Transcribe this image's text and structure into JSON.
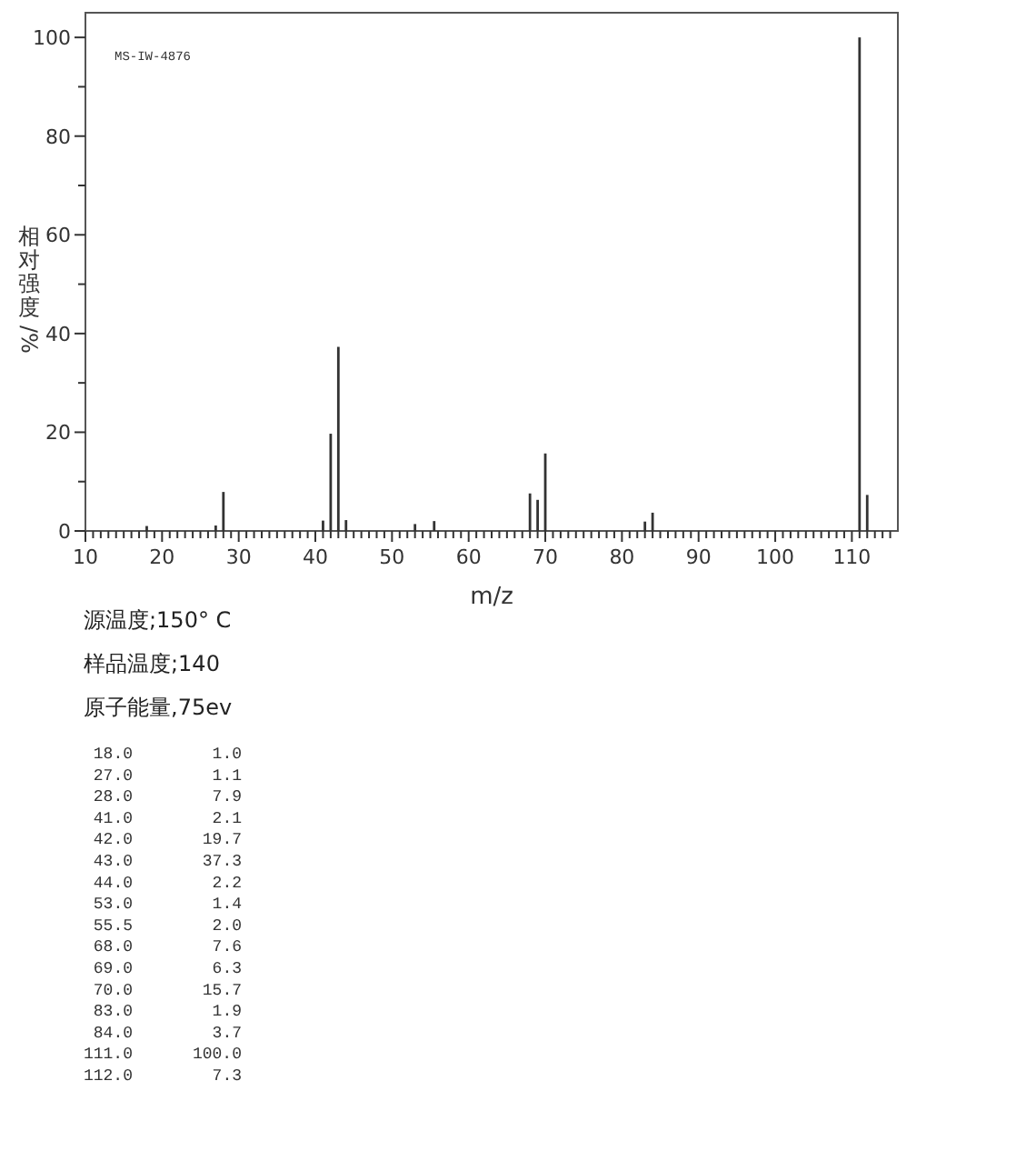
{
  "chart_data": {
    "type": "bar",
    "xlabel": "m/z",
    "ylabel": "相对强度/%",
    "x": [
      18.0,
      27.0,
      28.0,
      41.0,
      42.0,
      43.0,
      44.0,
      53.0,
      55.5,
      68.0,
      69.0,
      70.0,
      83.0,
      84.0,
      111.0,
      112.0
    ],
    "values": [
      1.0,
      1.1,
      7.9,
      2.1,
      19.7,
      37.3,
      2.2,
      1.4,
      2.0,
      7.6,
      6.3,
      15.7,
      1.9,
      3.7,
      100.0,
      7.3
    ],
    "color": "#333333",
    "xlim": [
      10,
      116
    ],
    "xticks": [
      10,
      {
        "value": 11,
        "label": null
      },
      {
        "value": 12,
        "label": null
      },
      {
        "value": 13,
        "label": null
      },
      {
        "value": 14,
        "label": null
      },
      {
        "value": 15,
        "label": null
      },
      {
        "value": 16,
        "label": null
      },
      {
        "value": 17,
        "label": null
      },
      {
        "value": 18,
        "label": null
      },
      {
        "value": 19,
        "label": null
      },
      20,
      {
        "value": 21,
        "label": null
      },
      {
        "value": 22,
        "label": null
      },
      {
        "value": 23,
        "label": null
      },
      {
        "value": 24,
        "label": null
      },
      {
        "value": 25,
        "label": null
      },
      {
        "value": 26,
        "label": null
      },
      {
        "value": 27,
        "label": null
      },
      {
        "value": 28,
        "label": null
      },
      {
        "value": 29,
        "label": null
      },
      30,
      {
        "value": 31,
        "label": null
      },
      {
        "value": 32,
        "label": null
      },
      {
        "value": 33,
        "label": null
      },
      {
        "value": 34,
        "label": null
      },
      {
        "value": 35,
        "label": null
      },
      {
        "value": 36,
        "label": null
      },
      {
        "value": 37,
        "label": null
      },
      {
        "value": 38,
        "label": null
      },
      {
        "value": 39,
        "label": null
      },
      40,
      {
        "value": 41,
        "label": null
      },
      {
        "value": 42,
        "label": null
      },
      {
        "value": 43,
        "label": null
      },
      {
        "value": 44,
        "label": null
      },
      {
        "value": 45,
        "label": null
      },
      {
        "value": 46,
        "label": null
      },
      {
        "value": 47,
        "label": null
      },
      {
        "value": 48,
        "label": null
      },
      {
        "value": 49,
        "label": null
      },
      50,
      {
        "value": 51,
        "label": null
      },
      {
        "value": 52,
        "label": null
      },
      {
        "value": 53,
        "label": null
      },
      {
        "value": 54,
        "label": null
      },
      {
        "value": 55,
        "label": null
      },
      {
        "value": 56,
        "label": null
      },
      {
        "value": 57,
        "label": null
      },
      {
        "value": 58,
        "label": null
      },
      {
        "value": 59,
        "label": null
      },
      60,
      {
        "value": 61,
        "label": null
      },
      {
        "value": 62,
        "label": null
      },
      {
        "value": 63,
        "label": null
      },
      {
        "value": 64,
        "label": null
      },
      {
        "value": 65,
        "label": null
      },
      {
        "value": 66,
        "label": null
      },
      {
        "value": 67,
        "label": null
      },
      {
        "value": 68,
        "label": null
      },
      {
        "value": 69,
        "label": null
      },
      70,
      {
        "value": 71,
        "label": null
      },
      {
        "value": 72,
        "label": null
      },
      {
        "value": 73,
        "label": null
      },
      {
        "value": 74,
        "label": null
      },
      {
        "value": 75,
        "label": null
      },
      {
        "value": 76,
        "label": null
      },
      {
        "value": 77,
        "label": null
      },
      {
        "value": 78,
        "label": null
      },
      {
        "value": 79,
        "label": null
      },
      80,
      {
        "value": 81,
        "label": null
      },
      {
        "value": 82,
        "label": null
      },
      {
        "value": 83,
        "label": null
      },
      {
        "value": 84,
        "label": null
      },
      {
        "value": 85,
        "label": null
      },
      {
        "value": 86,
        "label": null
      },
      {
        "value": 87,
        "label": null
      },
      {
        "value": 88,
        "label": null
      },
      {
        "value": 89,
        "label": null
      },
      90,
      {
        "value": 91,
        "label": null
      },
      {
        "value": 92,
        "label": null
      },
      {
        "value": 93,
        "label": null
      },
      {
        "value": 94,
        "label": null
      },
      {
        "value": 95,
        "label": null
      },
      {
        "value": 96,
        "label": null
      },
      {
        "value": 97,
        "label": null
      },
      {
        "value": 98,
        "label": null
      },
      {
        "value": 99,
        "label": null
      },
      100,
      {
        "value": 101,
        "label": null
      },
      {
        "value": 102,
        "label": null
      },
      {
        "value": 103,
        "label": null
      },
      {
        "value": 104,
        "label": null
      },
      {
        "value": 105,
        "label": null
      },
      {
        "value": 106,
        "label": null
      },
      {
        "value": 107,
        "label": null
      },
      {
        "value": 108,
        "label": null
      },
      {
        "value": 109,
        "label": null
      },
      110,
      {
        "value": 111,
        "label": null
      },
      {
        "value": 112,
        "label": null
      },
      {
        "value": 113,
        "label": null
      },
      {
        "value": 114,
        "label": null
      },
      {
        "value": 115,
        "label": null
      }
    ],
    "ylim": [
      0,
      105
    ],
    "yticks": [
      0,
      {
        "value": 10,
        "label": null
      },
      20,
      {
        "value": 30,
        "label": null
      },
      40,
      {
        "value": 50,
        "label": null
      },
      60,
      {
        "value": 70,
        "label": null
      },
      80,
      {
        "value": 90,
        "label": null
      },
      100
    ],
    "annotations": [
      "MS-IW-4876",
      "源温度;150° C",
      "样品温度;140",
      "原子能量,75ev",
      "18.0",
      "1.0",
      "27.0",
      "1.1",
      "28.0",
      "7.9",
      "41.0",
      "2.1",
      "42.0",
      "19.7",
      "43.0",
      "37.3",
      "44.0",
      "2.2",
      "53.0",
      "1.4",
      "55.5",
      "2.0",
      "68.0",
      "7.6",
      "69.0",
      "6.3",
      "70.0",
      "15.7",
      "83.0",
      "1.9",
      "84.0",
      "3.7",
      "111.0",
      "100.0",
      "112.0",
      "7.3"
    ]
  }
}
